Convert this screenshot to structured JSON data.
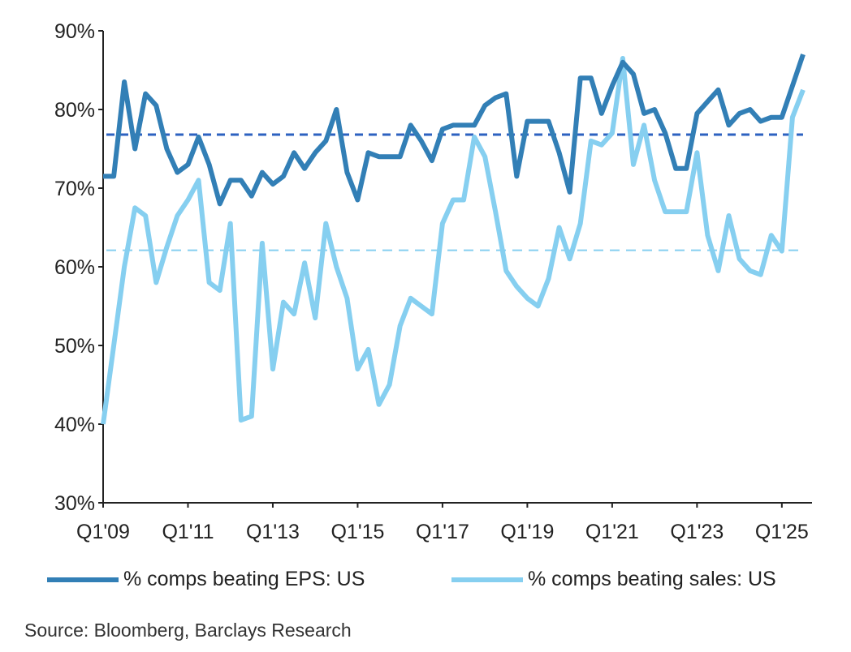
{
  "chart_data": {
    "type": "line",
    "title": "",
    "xlabel": "",
    "ylabel": "",
    "ylim": [
      30,
      90
    ],
    "yticks": [
      "30%",
      "40%",
      "50%",
      "60%",
      "70%",
      "80%",
      "90%"
    ],
    "xtick_labels": [
      "Q1'09",
      "Q1'11",
      "Q1'13",
      "Q1'15",
      "Q1'17",
      "Q1'19",
      "Q1'21",
      "Q1'23",
      "Q1'25"
    ],
    "x_start": "Q1'09",
    "x_end": "Q3'25",
    "grid": false,
    "legend_position": "bottom",
    "series": [
      {
        "name": "% comps beating EPS:  US",
        "color": "#327fb6",
        "average": 76.8,
        "average_color": "#2d62c0",
        "values": [
          71.5,
          71.5,
          83.5,
          75,
          82,
          80.5,
          75,
          72,
          73,
          76.5,
          73,
          68,
          71,
          71,
          69,
          72,
          70.5,
          71.5,
          74.5,
          72.5,
          74.5,
          76,
          80,
          72,
          68.5,
          74.5,
          74,
          74,
          74,
          78,
          76,
          73.5,
          77.5,
          78,
          78,
          78,
          80.5,
          81.5,
          82,
          71.5,
          78.5,
          78.5,
          78.5,
          74.5,
          69.5,
          84,
          84,
          79.5,
          83,
          86,
          84.5,
          79.5,
          80,
          77,
          72.5,
          72.5,
          79.5,
          81,
          82.5,
          78,
          79.5,
          80,
          78.5,
          79,
          79,
          83,
          87
        ]
      },
      {
        "name": "% comps beating sales:  US",
        "color": "#86cff0",
        "average": 62.1,
        "average_color": "#86cff0",
        "values": [
          40,
          50,
          60,
          67.5,
          66.5,
          58,
          62.5,
          66.5,
          68.5,
          71,
          58,
          57,
          65.5,
          40.5,
          41,
          63,
          47,
          55.5,
          54,
          60.5,
          53.5,
          65.5,
          60,
          56,
          47,
          49.5,
          42.5,
          45,
          52.5,
          56,
          55,
          54,
          65.5,
          68.5,
          68.5,
          76.5,
          74,
          67,
          59.5,
          57.5,
          56,
          55,
          58.5,
          65,
          61,
          65.5,
          76,
          75.5,
          77,
          86.5,
          73,
          78,
          71,
          67,
          67,
          67,
          74.5,
          64,
          59.5,
          66.5,
          61,
          59.5,
          59,
          64,
          62,
          79,
          82.5
        ]
      }
    ]
  },
  "legend": {
    "eps_label": "% comps beating EPS:  US",
    "sales_label": "% comps beating sales:  US"
  },
  "source": "Source: Bloomberg, Barclays Research"
}
